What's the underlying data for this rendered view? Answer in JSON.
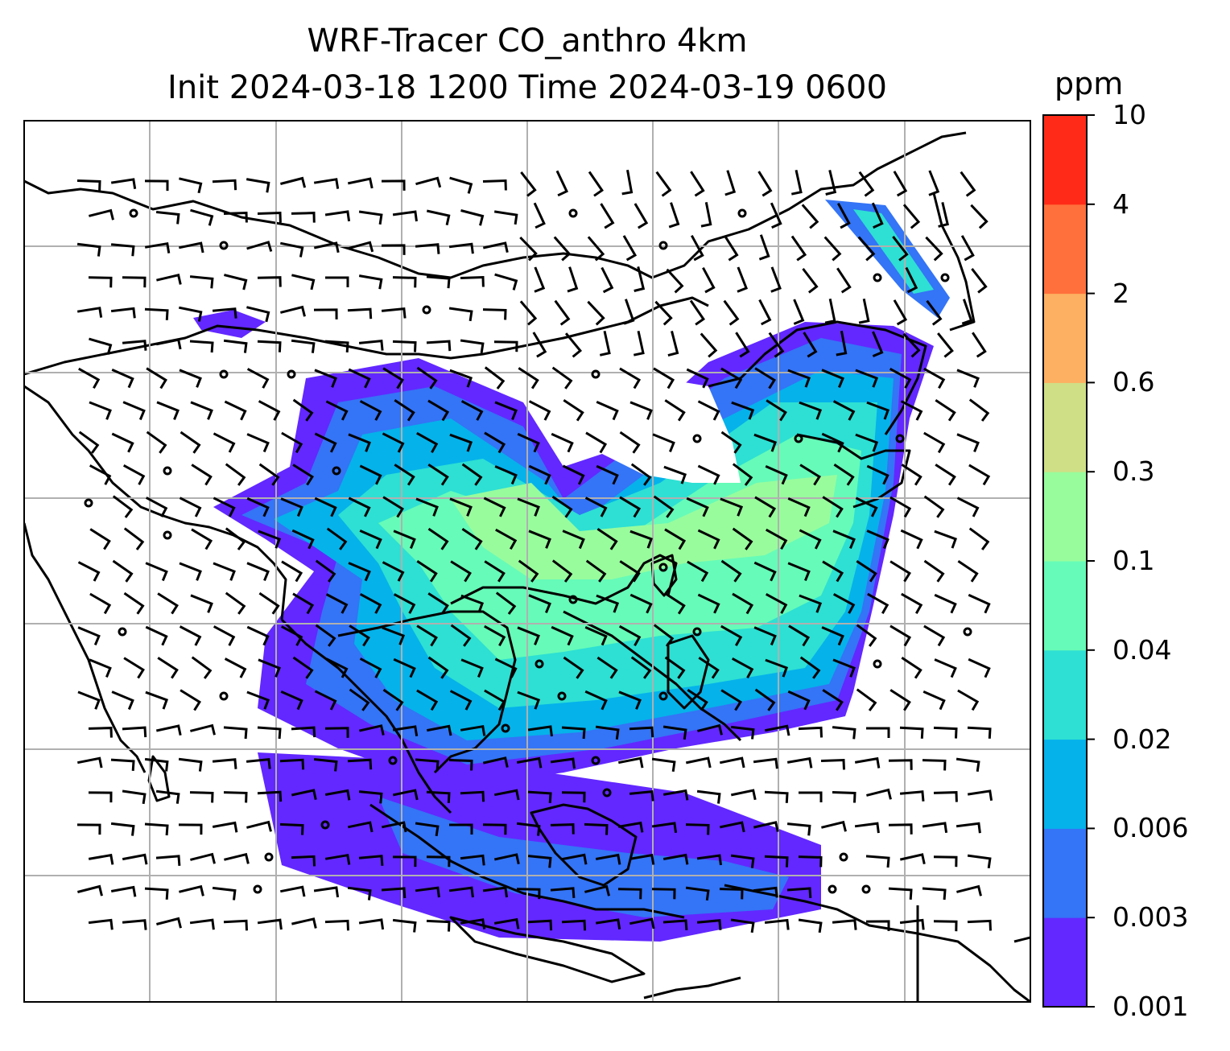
{
  "title": {
    "line1": "WRF-Tracer CO_anthro 4km",
    "line2": "Init 2024-03-18 1200 Time 2024-03-19 0600"
  },
  "colorbar": {
    "unit": "ppm",
    "levels": [
      "0.001",
      "0.003",
      "0.006",
      "0.02",
      "0.04",
      "0.1",
      "0.3",
      "0.6",
      "2",
      "4",
      "10"
    ],
    "colors": [
      "#6228ff",
      "#3474f6",
      "#05b2ea",
      "#2de0d3",
      "#66fbb8",
      "#98fc9d",
      "#cfdf86",
      "#fdb061",
      "#ff703c",
      "#ff2b18"
    ]
  },
  "map": {
    "field": "CO_anthro concentration with wind barbs",
    "gridlines": true,
    "coastlines": true
  }
}
